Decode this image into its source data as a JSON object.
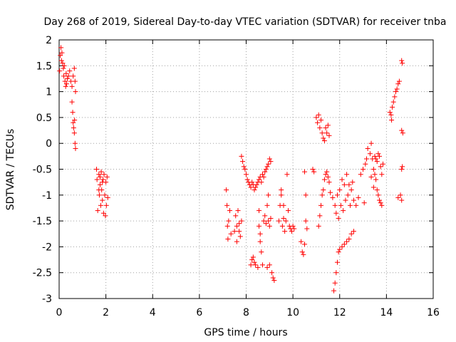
{
  "chart_data": {
    "type": "scatter",
    "title": "Day 268 of 2019, Sidereal Day-to-day VTEC variation (SDTVAR) for receiver tnba",
    "xlabel": "GPS time / hours",
    "ylabel": "SDTVAR / TECUs",
    "xlim": [
      0,
      16
    ],
    "ylim": [
      -3,
      2
    ],
    "xticks": [
      "0",
      "2",
      "4",
      "6",
      "8",
      "10",
      "12",
      "14",
      "16"
    ],
    "yticks": [
      "-3",
      "-2.5",
      "-2",
      "-1.5",
      "-1",
      "-0.5",
      "0",
      "0.5",
      "1",
      "1.5",
      "2"
    ],
    "grid": true,
    "marker": "+",
    "series": [
      {
        "name": "SDTVAR",
        "color": "#ff0000",
        "points": [
          [
            0.02,
            1.4
          ],
          [
            0.05,
            1.7
          ],
          [
            0.08,
            1.85
          ],
          [
            0.1,
            1.6
          ],
          [
            0.12,
            1.75
          ],
          [
            0.15,
            1.55
          ],
          [
            0.18,
            1.45
          ],
          [
            0.2,
            1.3
          ],
          [
            0.22,
            1.5
          ],
          [
            0.25,
            1.2
          ],
          [
            0.28,
            1.1
          ],
          [
            0.3,
            1.35
          ],
          [
            0.32,
            1.15
          ],
          [
            0.35,
            1.25
          ],
          [
            0.4,
            1.3
          ],
          [
            0.45,
            1.4
          ],
          [
            0.5,
            1.2
          ],
          [
            0.55,
            1.1
          ],
          [
            0.6,
            1.3
          ],
          [
            0.65,
            1.45
          ],
          [
            0.68,
            1.2
          ],
          [
            0.7,
            1.0
          ],
          [
            0.55,
            0.8
          ],
          [
            0.58,
            0.6
          ],
          [
            0.6,
            0.4
          ],
          [
            0.62,
            0.3
          ],
          [
            0.65,
            0.2
          ],
          [
            0.68,
            0.0
          ],
          [
            0.7,
            -0.1
          ],
          [
            0.66,
            0.45
          ],
          [
            1.6,
            -0.5
          ],
          [
            1.62,
            -0.7
          ],
          [
            1.65,
            -1.3
          ],
          [
            1.7,
            -0.6
          ],
          [
            1.72,
            -1.0
          ],
          [
            1.75,
            -0.8
          ],
          [
            1.78,
            -1.2
          ],
          [
            1.8,
            -0.55
          ],
          [
            1.82,
            -0.9
          ],
          [
            1.85,
            -1.1
          ],
          [
            1.88,
            -0.7
          ],
          [
            1.9,
            -1.35
          ],
          [
            1.92,
            -0.6
          ],
          [
            1.95,
            -1.0
          ],
          [
            1.98,
            -1.4
          ],
          [
            2.0,
            -0.75
          ],
          [
            2.02,
            -1.2
          ],
          [
            2.05,
            -0.65
          ],
          [
            2.08,
            -1.05
          ],
          [
            1.7,
            -0.9
          ],
          [
            1.75,
            -0.65
          ],
          [
            1.85,
            -0.75
          ],
          [
            7.15,
            -0.9
          ],
          [
            7.18,
            -1.2
          ],
          [
            7.2,
            -1.6
          ],
          [
            7.22,
            -1.85
          ],
          [
            7.25,
            -1.5
          ],
          [
            7.3,
            -1.3
          ],
          [
            7.35,
            -1.75
          ],
          [
            7.5,
            -1.7
          ],
          [
            7.55,
            -1.4
          ],
          [
            7.6,
            -1.9
          ],
          [
            7.65,
            -1.3
          ],
          [
            7.7,
            -1.55
          ],
          [
            7.75,
            -1.8
          ],
          [
            7.8,
            -1.5
          ],
          [
            7.6,
            -1.6
          ],
          [
            7.7,
            -1.7
          ],
          [
            7.8,
            -0.25
          ],
          [
            7.85,
            -0.35
          ],
          [
            7.9,
            -0.45
          ],
          [
            7.95,
            -0.5
          ],
          [
            8.0,
            -0.6
          ],
          [
            8.05,
            -0.7
          ],
          [
            8.1,
            -0.75
          ],
          [
            8.15,
            -0.8
          ],
          [
            8.2,
            -0.85
          ],
          [
            8.25,
            -0.75
          ],
          [
            8.3,
            -0.8
          ],
          [
            8.35,
            -0.9
          ],
          [
            8.4,
            -0.85
          ],
          [
            8.45,
            -0.8
          ],
          [
            8.5,
            -0.75
          ],
          [
            8.55,
            -0.7
          ],
          [
            8.6,
            -0.65
          ],
          [
            8.65,
            -0.75
          ],
          [
            8.7,
            -0.6
          ],
          [
            8.75,
            -0.65
          ],
          [
            8.8,
            -0.55
          ],
          [
            8.85,
            -0.5
          ],
          [
            8.9,
            -0.45
          ],
          [
            8.95,
            -0.4
          ],
          [
            9.0,
            -0.3
          ],
          [
            9.05,
            -0.35
          ],
          [
            8.2,
            -2.35
          ],
          [
            8.25,
            -2.25
          ],
          [
            8.3,
            -2.2
          ],
          [
            8.35,
            -2.3
          ],
          [
            8.4,
            -2.35
          ],
          [
            8.5,
            -2.4
          ],
          [
            8.55,
            -1.6
          ],
          [
            8.6,
            -1.9
          ],
          [
            8.65,
            -2.1
          ],
          [
            8.7,
            -2.35
          ],
          [
            8.75,
            -1.5
          ],
          [
            8.8,
            -1.4
          ],
          [
            8.85,
            -1.55
          ],
          [
            8.9,
            -2.4
          ],
          [
            8.95,
            -1.5
          ],
          [
            9.0,
            -2.35
          ],
          [
            9.05,
            -1.45
          ],
          [
            9.1,
            -2.5
          ],
          [
            9.15,
            -2.6
          ],
          [
            9.2,
            -2.65
          ],
          [
            8.9,
            -1.2
          ],
          [
            8.95,
            -1.0
          ],
          [
            8.55,
            -1.3
          ],
          [
            8.6,
            -1.75
          ],
          [
            9.0,
            -1.6
          ],
          [
            9.4,
            -1.5
          ],
          [
            9.45,
            -1.2
          ],
          [
            9.5,
            -0.9
          ],
          [
            9.55,
            -1.6
          ],
          [
            9.6,
            -1.45
          ],
          [
            9.65,
            -1.7
          ],
          [
            9.7,
            -1.5
          ],
          [
            9.75,
            -0.6
          ],
          [
            9.8,
            -1.3
          ],
          [
            9.85,
            -1.6
          ],
          [
            9.9,
            -1.65
          ],
          [
            9.95,
            -1.7
          ],
          [
            10.0,
            -1.6
          ],
          [
            10.05,
            -1.65
          ],
          [
            9.5,
            -1.0
          ],
          [
            9.6,
            -1.2
          ],
          [
            10.35,
            -1.9
          ],
          [
            10.4,
            -2.1
          ],
          [
            10.45,
            -2.15
          ],
          [
            10.5,
            -1.95
          ],
          [
            10.5,
            -0.55
          ],
          [
            10.55,
            -1.0
          ],
          [
            10.55,
            -1.5
          ],
          [
            10.6,
            -1.65
          ],
          [
            10.85,
            -0.5
          ],
          [
            10.9,
            -0.55
          ],
          [
            11.0,
            0.5
          ],
          [
            11.05,
            0.4
          ],
          [
            11.1,
            0.55
          ],
          [
            11.15,
            0.3
          ],
          [
            11.2,
            0.45
          ],
          [
            11.25,
            0.2
          ],
          [
            11.3,
            0.1
          ],
          [
            11.35,
            0.05
          ],
          [
            11.4,
            0.3
          ],
          [
            11.45,
            0.2
          ],
          [
            11.5,
            0.35
          ],
          [
            11.55,
            0.15
          ],
          [
            11.1,
            -1.6
          ],
          [
            11.15,
            -1.4
          ],
          [
            11.2,
            -1.2
          ],
          [
            11.25,
            -1.0
          ],
          [
            11.3,
            -0.9
          ],
          [
            11.35,
            -0.7
          ],
          [
            11.4,
            -0.6
          ],
          [
            11.45,
            -0.55
          ],
          [
            11.5,
            -0.65
          ],
          [
            11.55,
            -0.75
          ],
          [
            11.6,
            -0.95
          ],
          [
            11.7,
            -1.05
          ],
          [
            11.8,
            -1.2
          ],
          [
            11.85,
            -1.35
          ],
          [
            11.9,
            -1.0
          ],
          [
            11.95,
            -1.45
          ],
          [
            12.0,
            -0.9
          ],
          [
            12.05,
            -1.2
          ],
          [
            12.1,
            -0.7
          ],
          [
            12.15,
            -1.3
          ],
          [
            12.2,
            -0.8
          ],
          [
            12.25,
            -1.1
          ],
          [
            12.3,
            -0.6
          ],
          [
            12.35,
            -1.0
          ],
          [
            12.4,
            -0.8
          ],
          [
            12.45,
            -1.2
          ],
          [
            12.5,
            -0.9
          ],
          [
            12.55,
            -0.75
          ],
          [
            12.6,
            -1.1
          ],
          [
            12.7,
            -1.2
          ],
          [
            12.8,
            -1.05
          ],
          [
            12.9,
            -0.6
          ],
          [
            13.0,
            -0.5
          ],
          [
            13.05,
            -1.15
          ],
          [
            13.1,
            -0.4
          ],
          [
            13.15,
            -0.3
          ],
          [
            13.2,
            -0.1
          ],
          [
            11.75,
            -2.85
          ],
          [
            11.8,
            -2.7
          ],
          [
            11.85,
            -2.5
          ],
          [
            11.9,
            -2.3
          ],
          [
            11.95,
            -2.1
          ],
          [
            12.0,
            -2.05
          ],
          [
            12.1,
            -2.0
          ],
          [
            12.2,
            -1.95
          ],
          [
            12.3,
            -1.9
          ],
          [
            12.4,
            -1.85
          ],
          [
            12.5,
            -1.75
          ],
          [
            12.6,
            -1.7
          ],
          [
            13.3,
            -0.2
          ],
          [
            13.35,
            0.0
          ],
          [
            13.4,
            -0.3
          ],
          [
            13.45,
            -0.5
          ],
          [
            13.5,
            -0.6
          ],
          [
            13.55,
            -0.7
          ],
          [
            13.6,
            -0.9
          ],
          [
            13.65,
            -1.0
          ],
          [
            13.7,
            -1.1
          ],
          [
            13.75,
            -1.15
          ],
          [
            13.8,
            -1.2
          ],
          [
            13.35,
            -0.65
          ],
          [
            13.45,
            -0.85
          ],
          [
            13.5,
            -0.25
          ],
          [
            13.55,
            -0.3
          ],
          [
            13.6,
            -0.35
          ],
          [
            13.65,
            -0.2
          ],
          [
            13.7,
            -0.25
          ],
          [
            13.75,
            -0.45
          ],
          [
            13.8,
            -0.6
          ],
          [
            13.85,
            -0.4
          ],
          [
            14.15,
            0.6
          ],
          [
            14.2,
            0.55
          ],
          [
            14.22,
            0.45
          ],
          [
            14.25,
            0.7
          ],
          [
            14.3,
            0.8
          ],
          [
            14.35,
            0.9
          ],
          [
            14.4,
            1.0
          ],
          [
            14.45,
            1.05
          ],
          [
            14.5,
            1.15
          ],
          [
            14.55,
            1.2
          ],
          [
            14.65,
            1.6
          ],
          [
            14.68,
            1.55
          ],
          [
            14.65,
            0.25
          ],
          [
            14.7,
            0.2
          ],
          [
            14.65,
            -0.5
          ],
          [
            14.68,
            -0.45
          ],
          [
            14.6,
            -1.0
          ],
          [
            14.65,
            -1.1
          ],
          [
            14.5,
            -1.05
          ]
        ]
      }
    ]
  }
}
